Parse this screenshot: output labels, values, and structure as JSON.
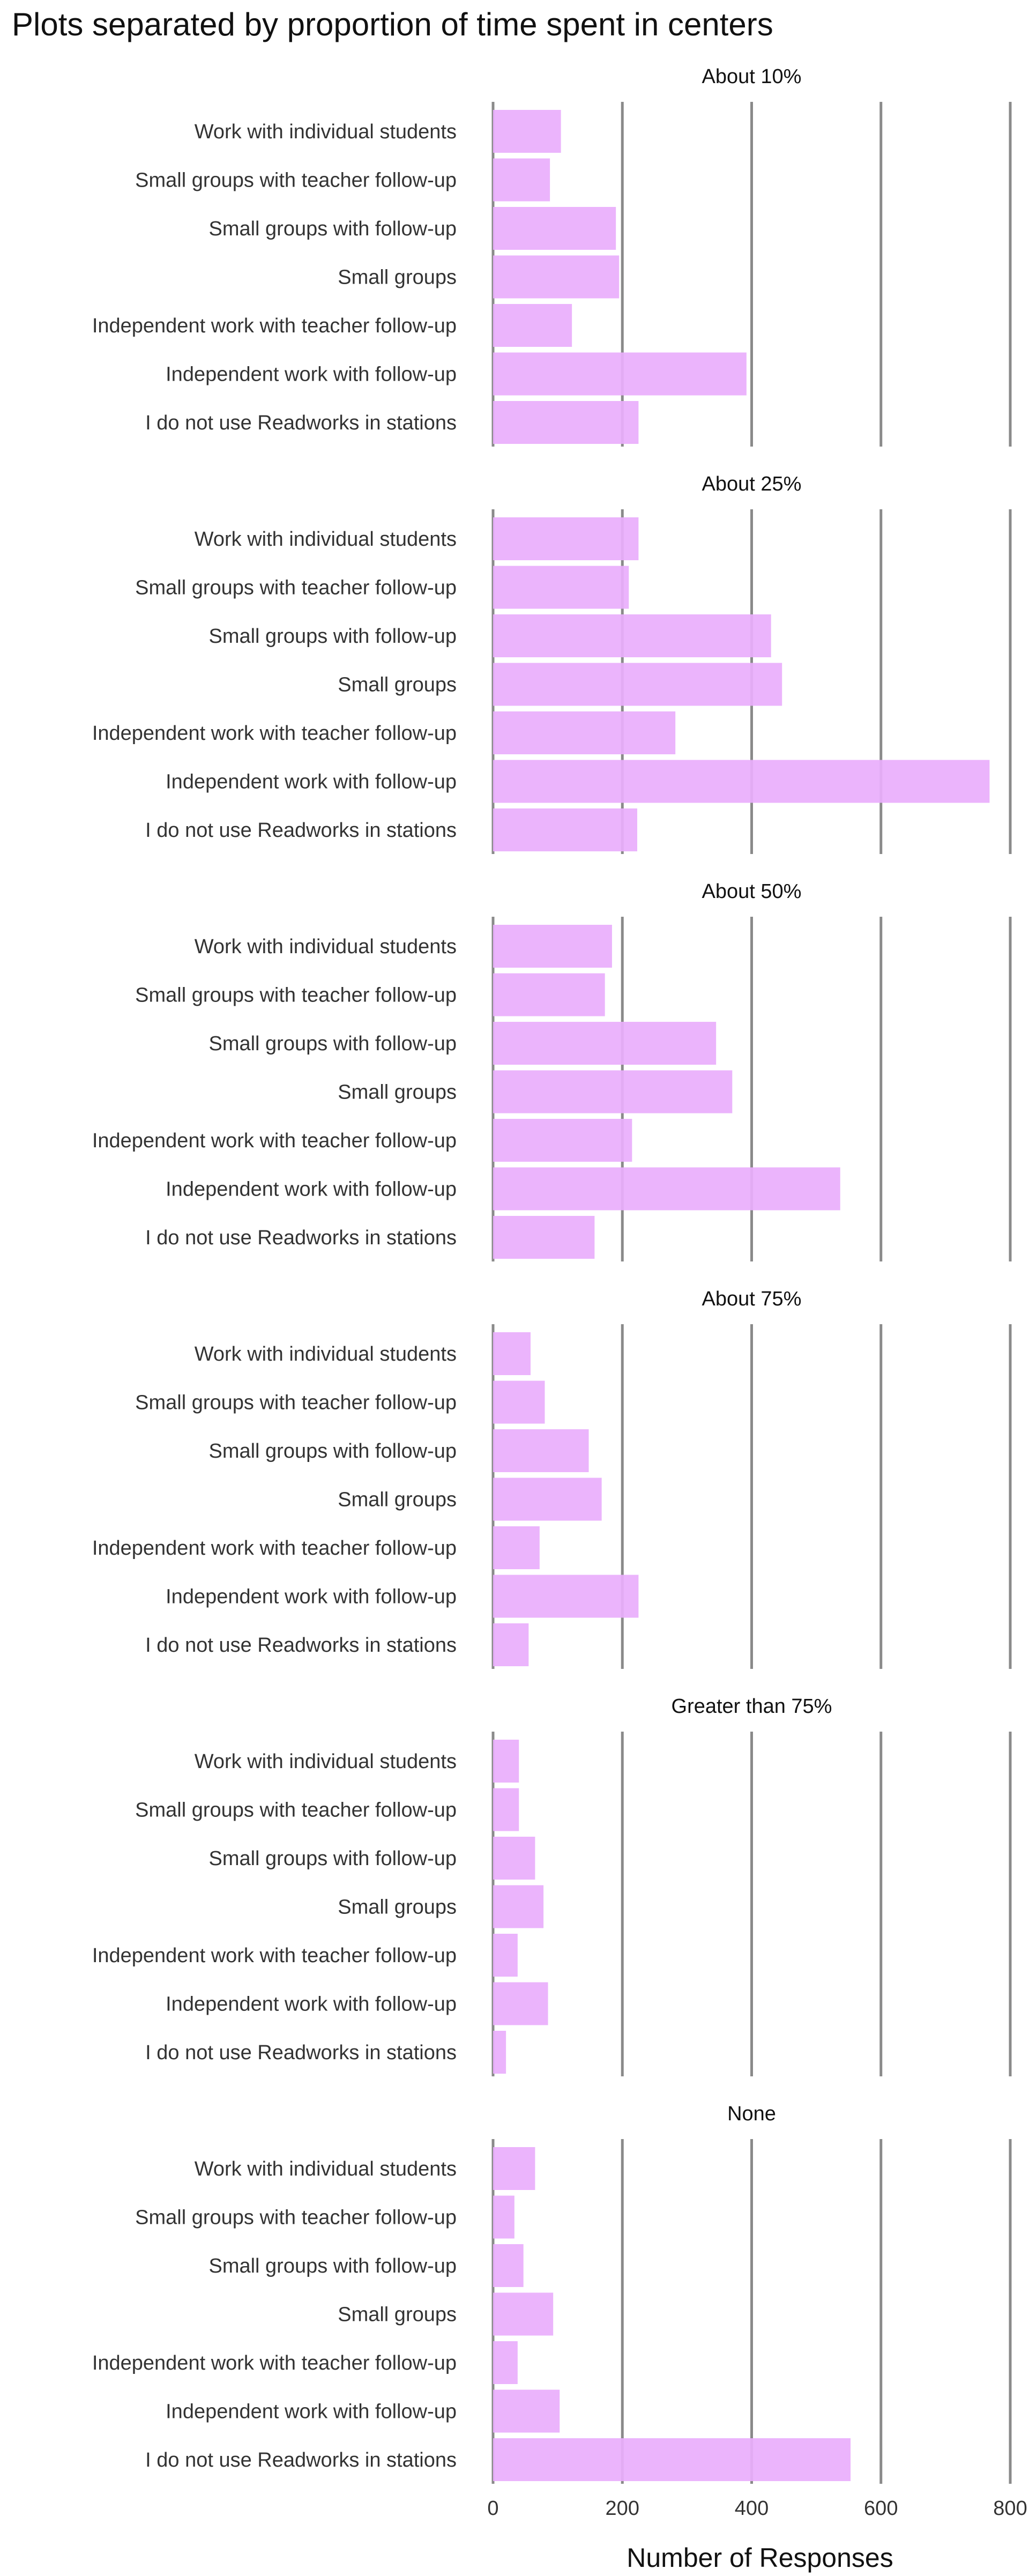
{
  "chart_data": {
    "type": "bar",
    "orientation": "horizontal",
    "title": "Plots separated by proportion of time spent in centers",
    "xlabel": "Number of Responses",
    "ylabel": "",
    "xlim": [
      0,
      800
    ],
    "xticks": [
      0,
      200,
      400,
      600,
      800
    ],
    "grid": true,
    "legend": "none",
    "bar_color": "#e9aefc",
    "gridline_color": "#8a8a8a",
    "categories": [
      "Work with individual students",
      "Small groups with teacher follow-up",
      "Small groups with follow-up",
      "Small groups",
      "Independent work with teacher follow-up",
      "Independent work with follow-up",
      "I do not use Readworks in stations"
    ],
    "panels": [
      {
        "title": "About 10%",
        "values": [
          105,
          88,
          190,
          195,
          122,
          392,
          225
        ]
      },
      {
        "title": "About 25%",
        "values": [
          225,
          210,
          430,
          447,
          282,
          768,
          223
        ]
      },
      {
        "title": "About 50%",
        "values": [
          184,
          173,
          345,
          370,
          215,
          537,
          157
        ]
      },
      {
        "title": "About 75%",
        "values": [
          58,
          80,
          148,
          168,
          72,
          225,
          55
        ]
      },
      {
        "title": "Greater than 75%",
        "values": [
          40,
          40,
          65,
          78,
          38,
          85,
          20
        ]
      },
      {
        "title": "None",
        "values": [
          65,
          33,
          47,
          93,
          38,
          103,
          553
        ]
      }
    ]
  }
}
